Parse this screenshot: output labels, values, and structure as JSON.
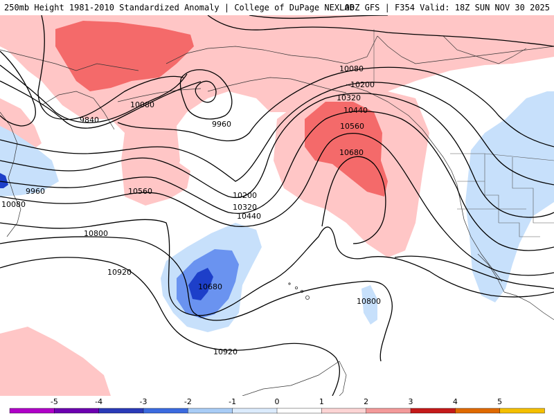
{
  "header": {
    "title_left": "250mb Height 1981-2010 Standardized Anomaly | College of DuPage NEXLAB",
    "title_right": "00Z GFS | F354 Valid: 18Z SUN NOV 30 2025"
  },
  "colors": {
    "anom_pos_1": "#ffc6c6",
    "anom_pos_2": "#f46a6a",
    "anom_neg_1": "#c7e0fb",
    "anom_neg_2": "#6a93f0",
    "anom_neg_3": "#1d3fc9",
    "contour": "#000000",
    "coastline": "#333333"
  },
  "contour_labels": [
    {
      "text": "9840"
    },
    {
      "text": "10080"
    },
    {
      "text": "9960"
    },
    {
      "text": "10080"
    },
    {
      "text": "10560"
    },
    {
      "text": "9960"
    },
    {
      "text": "10200"
    },
    {
      "text": "10320"
    },
    {
      "text": "10440"
    },
    {
      "text": "10800"
    },
    {
      "text": "10920"
    },
    {
      "text": "10680"
    },
    {
      "text": "10920"
    },
    {
      "text": "10080"
    },
    {
      "text": "10200"
    },
    {
      "text": "10320"
    },
    {
      "text": "10440"
    },
    {
      "text": "10560"
    },
    {
      "text": "10680"
    },
    {
      "text": "10800"
    }
  ],
  "colorbar": {
    "ticks": [
      "-5",
      "-4",
      "-3",
      "-2",
      "-1",
      "0",
      "1",
      "2",
      "3",
      "4",
      "5"
    ],
    "segments": [
      "#b000c8",
      "#6c00b0",
      "#2a3ab8",
      "#3b6be0",
      "#a9cdf7",
      "#dcecfd",
      "#ffffff",
      "#fdd5d5",
      "#f49a9a",
      "#c51a1a",
      "#e06a00",
      "#f5c000"
    ]
  }
}
